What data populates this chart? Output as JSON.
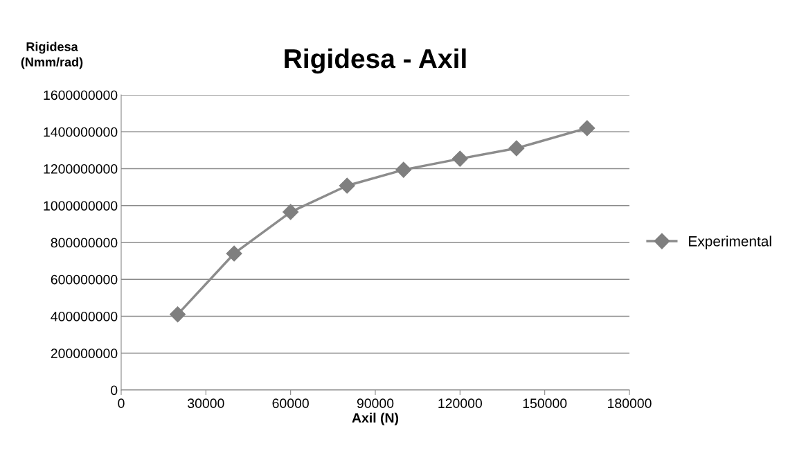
{
  "chart_data": {
    "type": "line",
    "title": "Rigidesa - Axil",
    "xlabel": "Axil (N)",
    "ylabel": "Rigidesa\n(Nmm/rad)",
    "x": [
      20000,
      40000,
      60000,
      80000,
      100000,
      120000,
      140000,
      165000
    ],
    "series": [
      {
        "name": "Experimental",
        "color": "#8c8c8c",
        "values": [
          410000000,
          740000000,
          965000000,
          1108000000,
          1194000000,
          1254000000,
          1311000000,
          1420000000
        ]
      }
    ],
    "xlim": [
      0,
      180000
    ],
    "xticks": [
      0,
      30000,
      60000,
      90000,
      120000,
      150000,
      180000
    ],
    "ylim": [
      0,
      1600000000
    ],
    "yticks": [
      0,
      200000000,
      400000000,
      600000000,
      800000000,
      1000000000,
      1200000000,
      1400000000,
      1600000000
    ],
    "grid": "y",
    "legend": "right",
    "marker": "diamond",
    "line_style": "solid"
  }
}
